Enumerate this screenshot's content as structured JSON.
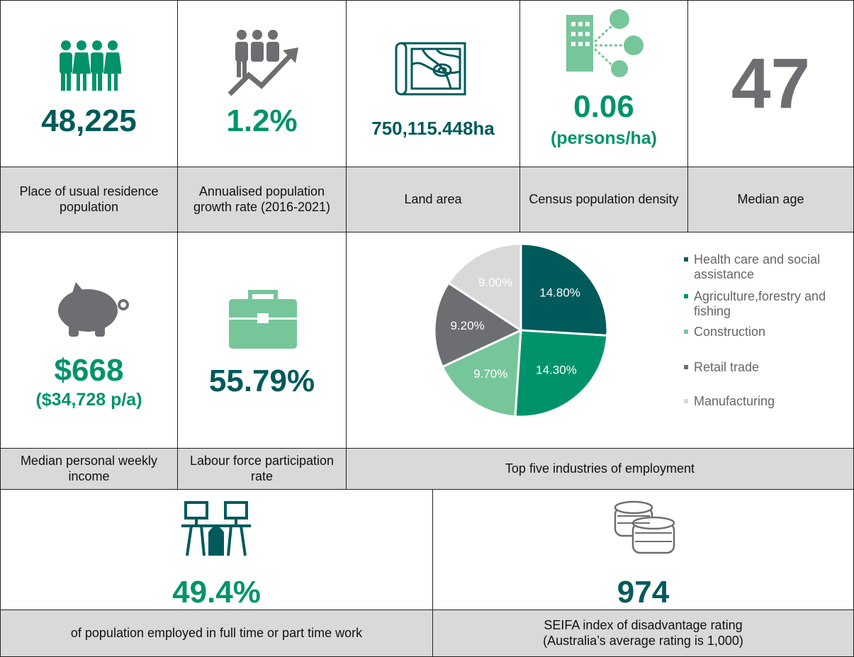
{
  "tiles": [
    {
      "value": "48,225",
      "label": "Place of usual residence population"
    },
    {
      "value": "1.2%",
      "label": "Annualised population growth rate (2016-2021)"
    },
    {
      "value": "750,115.448ha",
      "label": "Land area"
    },
    {
      "value": "0.06",
      "unit": "(persons/ha)",
      "label": "Census population density"
    },
    {
      "value": "47",
      "label": "Median age"
    },
    {
      "value": "$668",
      "unit": "($34,728 p/a)",
      "label": "Median personal weekly income"
    },
    {
      "value": "55.79%",
      "label": "Labour force participation rate"
    },
    {
      "value": "49.4%",
      "label": "of population employed in full time or part time work"
    },
    {
      "value": "974",
      "label": "SEIFA index of disadvantage rating (Australia’s average rating is 1,000)"
    }
  ],
  "chart_data": {
    "type": "pie",
    "caption": "Top five industries of employment",
    "categories": [
      "Health care and social assistance",
      "Agriculture,forestry and fishing",
      "Construction",
      "Retail trade",
      "Manufacturing"
    ],
    "values": [
      14.8,
      14.3,
      9.7,
      9.2,
      9.0
    ],
    "value_labels": [
      "14.80%",
      "14.30%",
      "9.70%",
      "9.20%",
      "9.00%"
    ],
    "colors": [
      "#005a5b",
      "#00936b",
      "#76c69a",
      "#6d6e71",
      "#d9d9d9"
    ]
  }
}
